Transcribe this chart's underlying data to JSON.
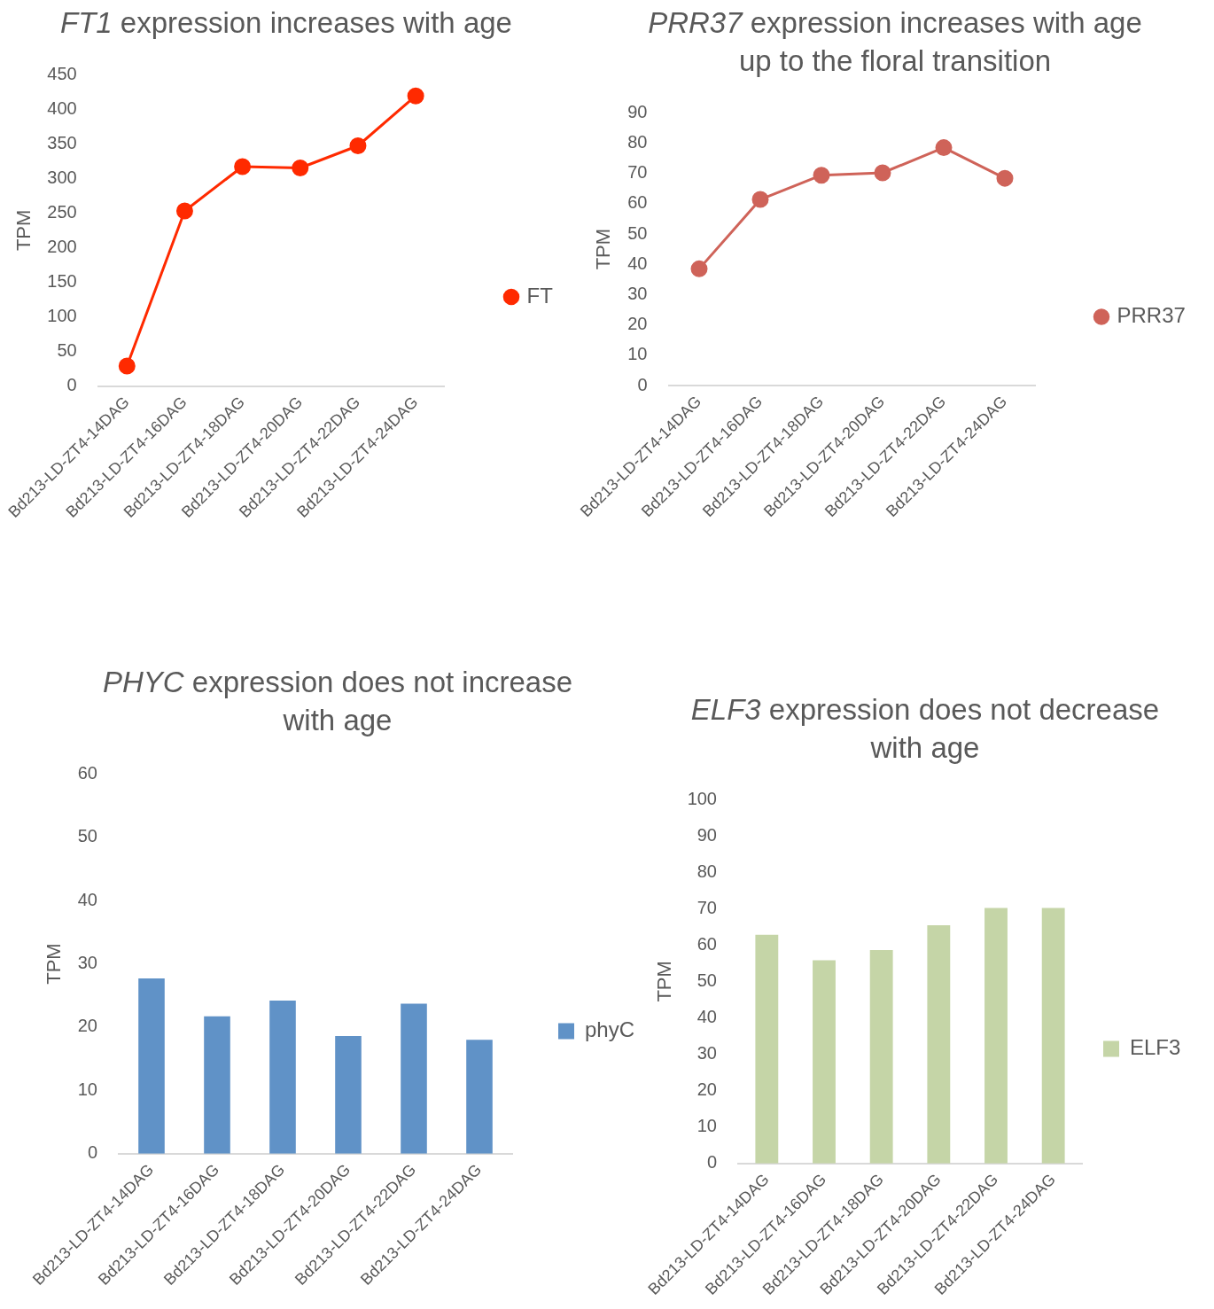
{
  "chart_data": [
    {
      "type": "line",
      "title": "FT1 expression increases with age",
      "ylabel": "TPM",
      "categories": [
        "Bd213-LD-ZT4-14DAG",
        "Bd213-LD-ZT4-16DAG",
        "Bd213-LD-ZT4-18DAG",
        "Bd213-LD-ZT4-20DAG",
        "Bd213-LD-ZT4-22DAG",
        "Bd213-LD-ZT4-24DAG"
      ],
      "series": [
        {
          "name": "FT",
          "color": "#ff2a00",
          "values": [
            29,
            253,
            317,
            315,
            347,
            419
          ]
        }
      ],
      "ylim": [
        0,
        450
      ],
      "yticks": [
        0,
        50,
        100,
        150,
        200,
        250,
        300,
        350,
        400,
        450
      ],
      "grid": false,
      "legend": "right",
      "marker": "circle",
      "line_style": "solid"
    },
    {
      "type": "line",
      "title": "PRR37 expression increases with age up to the floral transition",
      "ylabel": "TPM",
      "categories": [
        "Bd213-LD-ZT4-14DAG",
        "Bd213-LD-ZT4-16DAG",
        "Bd213-LD-ZT4-18DAG",
        "Bd213-LD-ZT4-20DAG",
        "Bd213-LD-ZT4-22DAG",
        "Bd213-LD-ZT4-24DAG"
      ],
      "series": [
        {
          "name": "PRR37",
          "color": "#cf6359",
          "values": [
            38.5,
            61.4,
            69.4,
            70.2,
            78.5,
            68.4
          ]
        }
      ],
      "ylim": [
        0,
        90
      ],
      "yticks": [
        0,
        10,
        20,
        30,
        40,
        50,
        60,
        70,
        80,
        90
      ],
      "grid": false,
      "legend": "right",
      "marker": "circle",
      "line_style": "solid"
    },
    {
      "type": "bar",
      "title": "PHYC expression does not increase with age",
      "ylabel": "TPM",
      "categories": [
        "Bd213-LD-ZT4-14DAG",
        "Bd213-LD-ZT4-16DAG",
        "Bd213-LD-ZT4-18DAG",
        "Bd213-LD-ZT4-20DAG",
        "Bd213-LD-ZT4-22DAG",
        "Bd213-LD-ZT4-24DAG"
      ],
      "series": [
        {
          "name": "phyC",
          "color": "#6092c7",
          "values": [
            27.7,
            21.7,
            24.2,
            18.6,
            23.7,
            18.0
          ]
        }
      ],
      "ylim": [
        0,
        60
      ],
      "yticks": [
        0,
        10,
        20,
        30,
        40,
        50,
        60
      ],
      "grid": false,
      "legend": "right"
    },
    {
      "type": "bar",
      "title": "ELF3 expression does not decrease with age",
      "ylabel": "TPM",
      "categories": [
        "Bd213-LD-ZT4-14DAG",
        "Bd213-LD-ZT4-16DAG",
        "Bd213-LD-ZT4-18DAG",
        "Bd213-LD-ZT4-20DAG",
        "Bd213-LD-ZT4-22DAG",
        "Bd213-LD-ZT4-24DAG"
      ],
      "series": [
        {
          "name": "ELF3",
          "color": "#c5d5a7",
          "values": [
            62.8,
            55.8,
            58.6,
            65.4,
            70.2,
            70.2
          ]
        }
      ],
      "ylim": [
        0,
        100
      ],
      "yticks": [
        0,
        10,
        20,
        30,
        40,
        50,
        60,
        70,
        80,
        90,
        100
      ],
      "grid": false,
      "legend": "right"
    }
  ]
}
